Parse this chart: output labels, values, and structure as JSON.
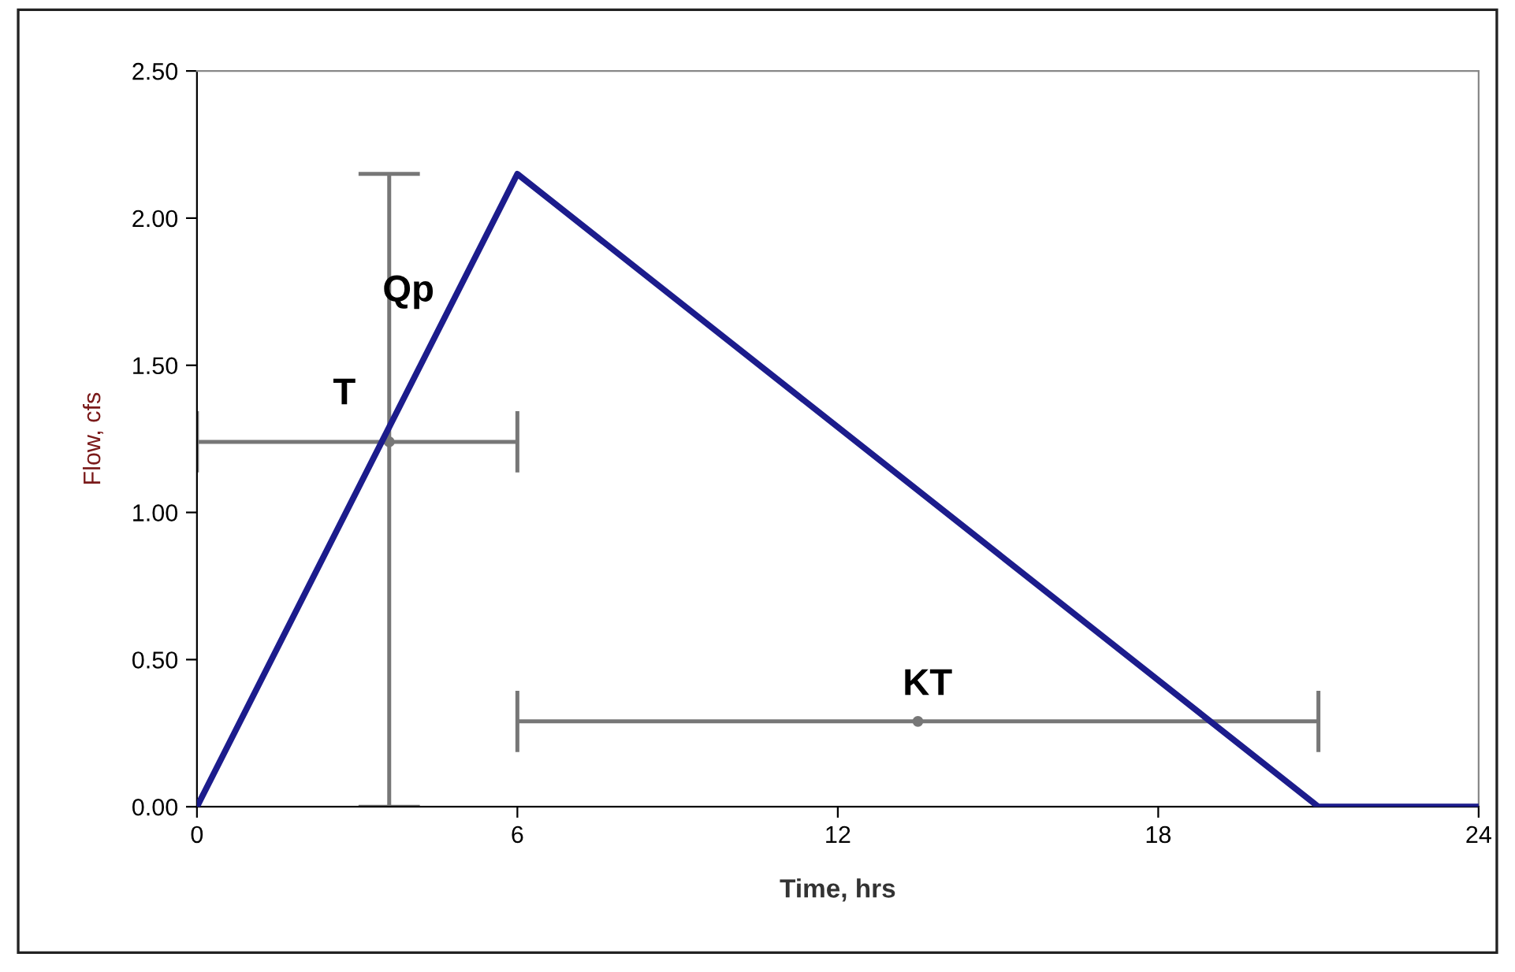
{
  "chart_data": {
    "type": "line",
    "xlabel": "Time, hrs",
    "ylabel": "Flow, cfs",
    "xlim": [
      0,
      24
    ],
    "ylim": [
      0,
      2.5
    ],
    "xticks": [
      0,
      6,
      12,
      18,
      24
    ],
    "yticks": [
      {
        "value": 0,
        "label": "0.00"
      },
      {
        "value": 0.5,
        "label": "0.50"
      },
      {
        "value": 1.0,
        "label": "1.00"
      },
      {
        "value": 1.5,
        "label": "1.50"
      },
      {
        "value": 2.0,
        "label": "2.00"
      },
      {
        "value": 2.5,
        "label": "2.50"
      }
    ],
    "grid": false,
    "legend": false,
    "line_style": "solid",
    "series": [
      {
        "color": "#1c1c8c",
        "x": [
          0,
          6,
          21,
          24
        ],
        "values": [
          0,
          2.15,
          0,
          0
        ]
      },
      {
        "type": "scatter",
        "marker": "circle",
        "color": "#777777",
        "x": [
          3.6
        ],
        "values": [
          1.24
        ],
        "errors": [
          [
            0,
            2.15
          ]
        ],
        "xerrors": [
          [
            0,
            6
          ]
        ]
      },
      {
        "type": "scatter",
        "marker": "circle",
        "color": "#777777",
        "x": [
          13.5
        ],
        "values": [
          0.29
        ],
        "xerrors": [
          [
            6,
            21
          ]
        ]
      }
    ],
    "annotations": [
      "Qp",
      "T",
      "KT"
    ]
  }
}
